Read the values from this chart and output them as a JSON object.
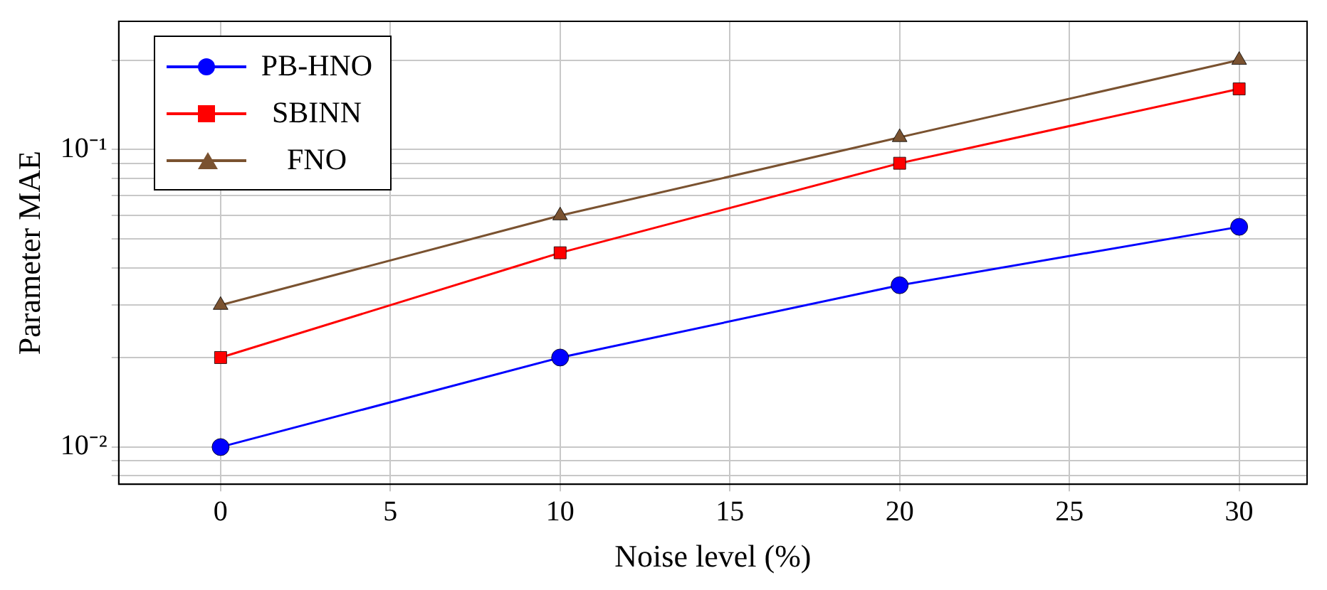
{
  "chart_data": {
    "type": "line",
    "xlabel": "Noise level (%)",
    "ylabel": "Parameter MAE",
    "x": [
      0,
      10,
      20,
      30
    ],
    "series": [
      {
        "name": "PB-HNO",
        "color": "#0000ff",
        "marker": "circle",
        "values": [
          0.01,
          0.02,
          0.035,
          0.055
        ]
      },
      {
        "name": "SBINN",
        "color": "#ff0000",
        "marker": "square",
        "values": [
          0.02,
          0.045,
          0.09,
          0.16
        ]
      },
      {
        "name": "FNO",
        "color": "#7a5230",
        "marker": "triangle",
        "values": [
          0.03,
          0.06,
          0.11,
          0.2
        ]
      }
    ],
    "xlim": [
      -3,
      32
    ],
    "xticks": [
      0,
      5,
      10,
      15,
      20,
      25,
      30
    ],
    "ylim": [
      0.0075,
      0.27
    ],
    "log": "y",
    "yticks": [
      {
        "value": 0.008,
        "label": null
      },
      {
        "value": 0.009,
        "label": null
      },
      {
        "value": 0.01,
        "label": "10⁻²"
      },
      {
        "value": 0.02,
        "label": null
      },
      {
        "value": 0.03,
        "label": null
      },
      {
        "value": 0.04,
        "label": null
      },
      {
        "value": 0.05,
        "label": null
      },
      {
        "value": 0.06,
        "label": null
      },
      {
        "value": 0.07,
        "label": null
      },
      {
        "value": 0.08,
        "label": null
      },
      {
        "value": 0.09,
        "label": null
      },
      {
        "value": 0.1,
        "label": "10⁻¹"
      },
      {
        "value": 0.2,
        "label": null
      }
    ],
    "grid": true,
    "legend": "top left",
    "line_style": "solid"
  }
}
